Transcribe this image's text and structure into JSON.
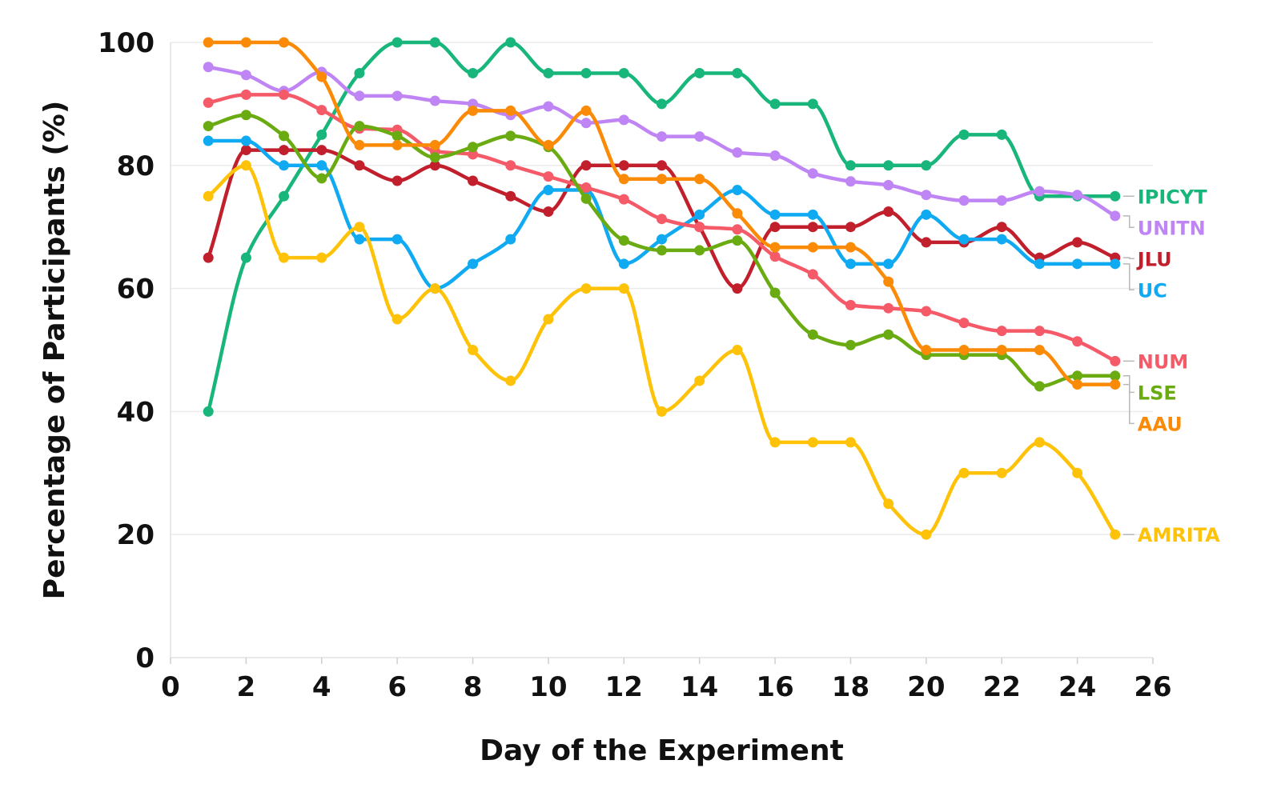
{
  "chart_data": {
    "type": "line",
    "title": "",
    "xlabel": "Day of the Experiment",
    "ylabel": "Percentage of Participants (%)",
    "xlim": [
      0,
      26
    ],
    "ylim": [
      0,
      100
    ],
    "x_ticks": [
      "0",
      "2",
      "4",
      "6",
      "8",
      "10",
      "12",
      "14",
      "16",
      "18",
      "20",
      "22",
      "24",
      "26"
    ],
    "y_ticks": [
      "0",
      "20",
      "40",
      "60",
      "80",
      "100"
    ],
    "grid": "horizontal",
    "legend": "direct labels at right end of lines",
    "x": [
      1,
      2,
      3,
      4,
      5,
      6,
      7,
      8,
      9,
      10,
      11,
      12,
      13,
      14,
      15,
      16,
      17,
      18,
      19,
      20,
      21,
      22,
      23,
      24,
      25
    ],
    "series": [
      {
        "name": "IPICYT",
        "color": "#18b67a",
        "values": [
          40,
          65,
          75,
          85,
          95,
          100,
          100,
          95,
          100,
          95,
          95,
          95,
          90,
          95,
          95,
          90,
          90,
          80,
          80,
          80,
          85,
          85,
          75,
          75,
          75
        ]
      },
      {
        "name": "UNITN",
        "color": "#c085f5",
        "values": [
          96,
          94.7,
          92.1,
          95.2,
          91.3,
          91.3,
          90.5,
          90,
          88.2,
          89.6,
          86.9,
          87.4,
          84.7,
          84.7,
          82.1,
          81.6,
          78.7,
          77.4,
          76.8,
          75.2,
          74.3,
          74.3,
          75.8,
          75.2,
          71.8
        ]
      },
      {
        "name": "JLU",
        "color": "#c21f2c",
        "values": [
          65,
          82.5,
          82.5,
          82.5,
          80,
          77.5,
          80,
          77.5,
          75,
          72.5,
          80,
          80,
          80,
          70,
          60,
          70,
          70,
          70,
          72.5,
          67.5,
          67.5,
          70,
          65,
          67.5,
          65
        ]
      },
      {
        "name": "UC",
        "color": "#10aaf2",
        "values": [
          84,
          84,
          80,
          80,
          68,
          68,
          60,
          64,
          68,
          76,
          76,
          64,
          68,
          72,
          76,
          72,
          72,
          64,
          64,
          72,
          68,
          68,
          64,
          64,
          64
        ]
      },
      {
        "name": "NUM",
        "color": "#f55a68",
        "values": [
          90.2,
          91.5,
          91.5,
          89,
          86,
          85.8,
          82.3,
          81.8,
          80,
          78.2,
          76.4,
          74.5,
          71.3,
          70,
          69.6,
          65.2,
          62.3,
          57.3,
          56.8,
          56.3,
          54.4,
          53.1,
          53.1,
          51.4,
          48.2
        ]
      },
      {
        "name": "LSE",
        "color": "#6aab12",
        "values": [
          86.4,
          88.2,
          84.8,
          77.9,
          86.4,
          84.8,
          81.3,
          83,
          84.8,
          83,
          74.6,
          67.8,
          66.2,
          66.2,
          67.8,
          59.3,
          52.5,
          50.8,
          52.5,
          49.2,
          49.2,
          49.2,
          44.1,
          45.8,
          45.8
        ]
      },
      {
        "name": "AAU",
        "color": "#fb8a07",
        "values": [
          100,
          100,
          100,
          94.4,
          83.3,
          83.3,
          83.3,
          88.9,
          88.9,
          83.3,
          88.9,
          77.8,
          77.8,
          77.8,
          72.2,
          66.7,
          66.7,
          66.7,
          61.1,
          50,
          50,
          50,
          50,
          44.4,
          44.4
        ]
      },
      {
        "name": "AMRITA",
        "color": "#fec208",
        "values": [
          75,
          80,
          65,
          65,
          70,
          55,
          60,
          50,
          45,
          55,
          60,
          60,
          40,
          45,
          50,
          35,
          35,
          35,
          25,
          20,
          30,
          30,
          35,
          30,
          20
        ]
      }
    ],
    "label_order": [
      "IPICYT",
      "UNITN",
      "JLU",
      "UC",
      "NUM",
      "LSE",
      "AAU",
      "AMRITA"
    ]
  }
}
